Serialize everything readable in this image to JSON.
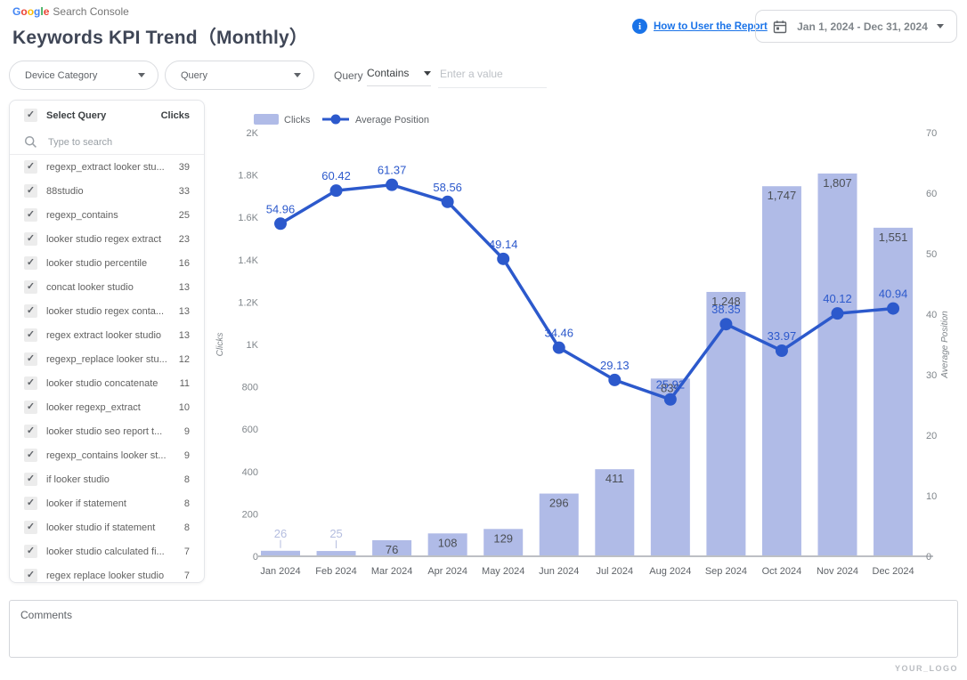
{
  "header": {
    "logo": {
      "brand": "Google",
      "brand_letter_colors": [
        "#4285F4",
        "#EA4335",
        "#FBBC05",
        "#4285F4",
        "#34A853",
        "#EA4335"
      ],
      "product": "Search Console"
    },
    "title": "Keywords KPI Trend（Monthly）",
    "help_link": "How to User the Report",
    "date_range": "Jan 1, 2024 - Dec 31, 2024"
  },
  "filters": {
    "device_category": {
      "label": "Device Category"
    },
    "query_dropdown": {
      "label": "Query"
    },
    "query_filter": {
      "label": "Query",
      "operator": "Contains",
      "placeholder": "Enter a value"
    }
  },
  "query_list": {
    "header": {
      "title": "Select Query",
      "metric": "Clicks"
    },
    "search_placeholder": "Type to search",
    "items": [
      {
        "label": "regexp_extract looker stu...",
        "clicks": "39"
      },
      {
        "label": "88studio",
        "clicks": "33"
      },
      {
        "label": "regexp_contains",
        "clicks": "25"
      },
      {
        "label": "looker studio regex extract",
        "clicks": "23"
      },
      {
        "label": "looker studio percentile",
        "clicks": "16"
      },
      {
        "label": "concat looker studio",
        "clicks": "13"
      },
      {
        "label": "looker studio regex conta...",
        "clicks": "13"
      },
      {
        "label": "regex extract looker studio",
        "clicks": "13"
      },
      {
        "label": "regexp_replace looker stu...",
        "clicks": "12"
      },
      {
        "label": "looker studio concatenate",
        "clicks": "11"
      },
      {
        "label": "looker regexp_extract",
        "clicks": "10"
      },
      {
        "label": "looker studio seo report t...",
        "clicks": "9"
      },
      {
        "label": "regexp_contains looker st...",
        "clicks": "9"
      },
      {
        "label": "if looker studio",
        "clicks": "8"
      },
      {
        "label": "looker if statement",
        "clicks": "8"
      },
      {
        "label": "looker studio if statement",
        "clicks": "8"
      },
      {
        "label": "looker studio calculated fi...",
        "clicks": "7"
      },
      {
        "label": "regex replace looker studio",
        "clicks": "7"
      }
    ]
  },
  "chart_data": {
    "type": "bar",
    "subtype": "combo bar+line, dual axis",
    "categories": [
      "Jan 2024",
      "Feb 2024",
      "Mar 2024",
      "Apr 2024",
      "May 2024",
      "Jun 2024",
      "Jul 2024",
      "Aug 2024",
      "Sep 2024",
      "Oct 2024",
      "Nov 2024",
      "Dec 2024"
    ],
    "series": [
      {
        "name": "Clicks",
        "type": "bar",
        "axis": "left",
        "values": [
          26,
          25,
          76,
          108,
          129,
          296,
          411,
          839,
          1248,
          1747,
          1807,
          1551
        ],
        "labels": [
          "26",
          "25",
          "76",
          "108",
          "129",
          "296",
          "411",
          "839",
          "1,248",
          "1,747",
          "1,807",
          "1,551"
        ]
      },
      {
        "name": "Average Position",
        "type": "line",
        "axis": "right",
        "values": [
          54.96,
          60.42,
          61.37,
          58.56,
          49.14,
          34.46,
          29.13,
          25.92,
          38.35,
          33.97,
          40.12,
          40.94
        ],
        "labels": [
          "54.96",
          "60.42",
          "61.37",
          "58.56",
          "49.14",
          "34.46",
          "29.13",
          "25.92",
          "38.35",
          "33.97",
          "40.12",
          "40.94"
        ]
      }
    ],
    "left_axis": {
      "title": "Clicks",
      "min": 0,
      "max": 2000,
      "ticks": [
        "0",
        "200",
        "400",
        "600",
        "800",
        "1K",
        "1.2K",
        "1.4K",
        "1.6K",
        "1.8K",
        "2K"
      ]
    },
    "right_axis": {
      "title": "Average Position",
      "min": 0,
      "max": 70,
      "ticks": [
        "0",
        "10",
        "20",
        "30",
        "40",
        "50",
        "60",
        "70"
      ]
    },
    "legend": [
      {
        "label": "Clicks",
        "marker": "bar-swatch"
      },
      {
        "label": "Average Position",
        "marker": "line-dot"
      }
    ],
    "grid": false,
    "legend_position": "top-left"
  },
  "comments": {
    "placeholder": "Comments"
  },
  "footer": {
    "watermark": "YOUR_LOGO"
  },
  "colors": {
    "bar": "#b0bbe7",
    "bar_label_dark": "#4b4f55",
    "bar_label_light": "#b4bddf",
    "line": "#2c59cc",
    "line_label": "#2c59cc",
    "axis_text": "#80868b",
    "axis_title": "#80868b",
    "x_label": "#5f6368",
    "axis_line": "#bdbfc4",
    "accent_blue": "#1a73e8",
    "title_text": "#3f4656"
  }
}
